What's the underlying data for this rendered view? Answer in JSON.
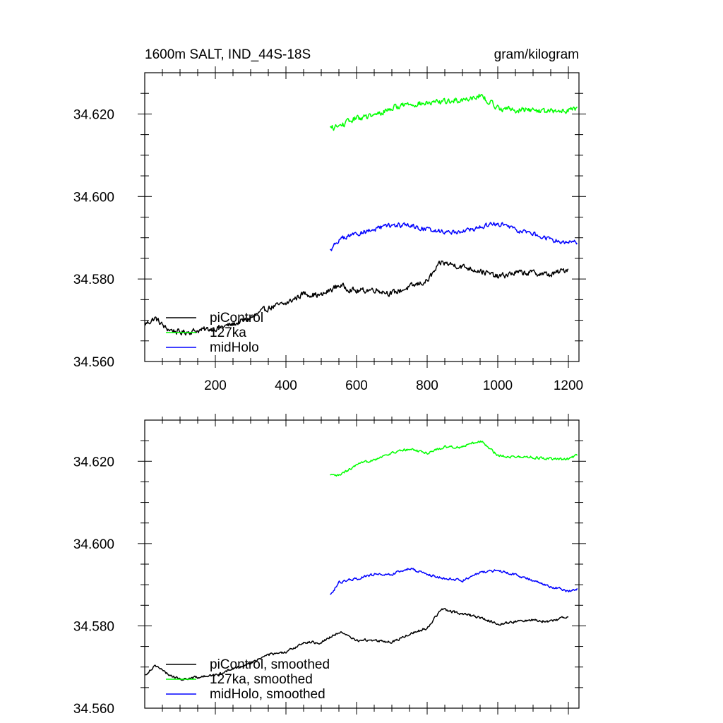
{
  "chart_data": [
    {
      "type": "line",
      "title_left": "1600m SALT, IND_44S-18S",
      "title_right": "gram/kilogram",
      "xlim": [
        0,
        1230
      ],
      "ylim": [
        34.56,
        34.63
      ],
      "xticks": [
        200,
        400,
        600,
        800,
        1000,
        1200
      ],
      "xtick_labels": [
        "200",
        "400",
        "600",
        "800",
        "1000",
        "1200"
      ],
      "show_xtick_labels": true,
      "yticks": [
        34.56,
        34.58,
        34.6,
        34.62
      ],
      "ytick_labels": [
        "34.560",
        "34.580",
        "34.600",
        "34.620"
      ],
      "legend_position": "bottom-left",
      "series": [
        {
          "name": "piControl",
          "color": "#000000",
          "noise": 0.0011,
          "points": [
            [
              0,
              34.569
            ],
            [
              30,
              34.5705
            ],
            [
              60,
              34.568
            ],
            [
              100,
              34.567
            ],
            [
              150,
              34.5675
            ],
            [
              200,
              34.568
            ],
            [
              250,
              34.569
            ],
            [
              300,
              34.5705
            ],
            [
              350,
              34.573
            ],
            [
              400,
              34.574
            ],
            [
              450,
              34.5765
            ],
            [
              500,
              34.576
            ],
            [
              550,
              34.5785
            ],
            [
              600,
              34.577
            ],
            [
              650,
              34.5775
            ],
            [
              700,
              34.5765
            ],
            [
              750,
              34.578
            ],
            [
              800,
              34.5795
            ],
            [
              840,
              34.584
            ],
            [
              900,
              34.583
            ],
            [
              950,
              34.582
            ],
            [
              1000,
              34.5805
            ],
            [
              1050,
              34.5815
            ],
            [
              1100,
              34.5815
            ],
            [
              1150,
              34.581
            ],
            [
              1200,
              34.5825
            ]
          ]
        },
        {
          "name": "127ka",
          "color": "#00ff00",
          "noise": 0.0011,
          "points": [
            [
              525,
              34.6165
            ],
            [
              550,
              34.617
            ],
            [
              600,
              34.619
            ],
            [
              650,
              34.6195
            ],
            [
              700,
              34.6215
            ],
            [
              750,
              34.6225
            ],
            [
              800,
              34.6225
            ],
            [
              850,
              34.623
            ],
            [
              900,
              34.6235
            ],
            [
              950,
              34.6245
            ],
            [
              1000,
              34.6215
            ],
            [
              1050,
              34.621
            ],
            [
              1100,
              34.621
            ],
            [
              1150,
              34.6205
            ],
            [
              1200,
              34.621
            ],
            [
              1225,
              34.6215
            ]
          ]
        },
        {
          "name": "midHolo",
          "color": "#0000ff",
          "noise": 0.0009,
          "points": [
            [
              525,
              34.587
            ],
            [
              550,
              34.5895
            ],
            [
              600,
              34.591
            ],
            [
              650,
              34.592
            ],
            [
              700,
              34.593
            ],
            [
              750,
              34.593
            ],
            [
              800,
              34.592
            ],
            [
              850,
              34.5915
            ],
            [
              900,
              34.5915
            ],
            [
              950,
              34.5925
            ],
            [
              1000,
              34.5935
            ],
            [
              1050,
              34.592
            ],
            [
              1100,
              34.591
            ],
            [
              1150,
              34.5895
            ],
            [
              1200,
              34.589
            ],
            [
              1225,
              34.589
            ]
          ]
        }
      ]
    },
    {
      "type": "line",
      "xlim": [
        0,
        1230
      ],
      "ylim": [
        34.56,
        34.63
      ],
      "xticks": [
        200,
        400,
        600,
        800,
        1000,
        1200
      ],
      "show_xtick_labels": false,
      "yticks": [
        34.56,
        34.58,
        34.6,
        34.62
      ],
      "ytick_labels": [
        "34.560",
        "34.580",
        "34.600",
        "34.620"
      ],
      "legend_position": "bottom-left",
      "series": [
        {
          "name": "piControl, smoothed",
          "color": "#000000",
          "noise": 0.0005,
          "points": [
            [
              0,
              34.568
            ],
            [
              30,
              34.5705
            ],
            [
              60,
              34.5685
            ],
            [
              100,
              34.567
            ],
            [
              150,
              34.5675
            ],
            [
              200,
              34.568
            ],
            [
              250,
              34.5695
            ],
            [
              300,
              34.571
            ],
            [
              350,
              34.573
            ],
            [
              400,
              34.5735
            ],
            [
              450,
              34.576
            ],
            [
              500,
              34.576
            ],
            [
              550,
              34.5785
            ],
            [
              600,
              34.5765
            ],
            [
              650,
              34.5765
            ],
            [
              700,
              34.576
            ],
            [
              750,
              34.578
            ],
            [
              800,
              34.5795
            ],
            [
              840,
              34.584
            ],
            [
              900,
              34.583
            ],
            [
              950,
              34.582
            ],
            [
              1000,
              34.5805
            ],
            [
              1050,
              34.581
            ],
            [
              1100,
              34.5815
            ],
            [
              1150,
              34.581
            ],
            [
              1200,
              34.5825
            ]
          ]
        },
        {
          "name": "127ka, smoothed",
          "color": "#00ff00",
          "noise": 0.0005,
          "points": [
            [
              525,
              34.6165
            ],
            [
              550,
              34.6165
            ],
            [
              600,
              34.619
            ],
            [
              650,
              34.6205
            ],
            [
              700,
              34.622
            ],
            [
              750,
              34.623
            ],
            [
              800,
              34.622
            ],
            [
              850,
              34.6235
            ],
            [
              900,
              34.6235
            ],
            [
              950,
              34.625
            ],
            [
              1000,
              34.6215
            ],
            [
              1050,
              34.621
            ],
            [
              1100,
              34.621
            ],
            [
              1150,
              34.6205
            ],
            [
              1200,
              34.6205
            ],
            [
              1225,
              34.6215
            ]
          ]
        },
        {
          "name": "midHolo, smoothed",
          "color": "#0000ff",
          "noise": 0.0005,
          "points": [
            [
              525,
              34.5875
            ],
            [
              550,
              34.5905
            ],
            [
              600,
              34.5915
            ],
            [
              650,
              34.5925
            ],
            [
              700,
              34.5925
            ],
            [
              750,
              34.594
            ],
            [
              800,
              34.5925
            ],
            [
              850,
              34.5915
            ],
            [
              900,
              34.591
            ],
            [
              950,
              34.593
            ],
            [
              1000,
              34.5935
            ],
            [
              1050,
              34.5925
            ],
            [
              1100,
              34.591
            ],
            [
              1150,
              34.5895
            ],
            [
              1200,
              34.5885
            ],
            [
              1225,
              34.589
            ]
          ]
        }
      ]
    }
  ]
}
